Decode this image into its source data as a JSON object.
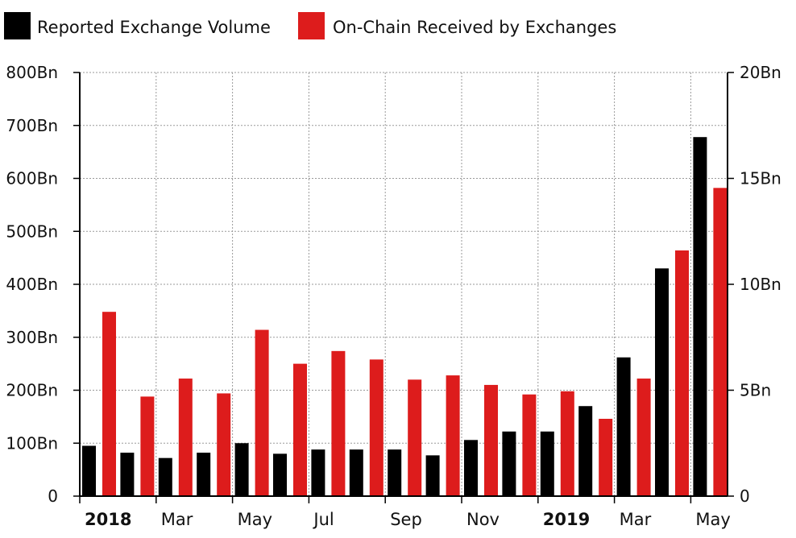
{
  "chart_data": {
    "type": "bar",
    "title": "",
    "xlabel": "",
    "ylabel": "",
    "legend": {
      "placement": "top-left",
      "entries": [
        {
          "label": "Reported Exchange Volume",
          "color": "#000000"
        },
        {
          "label": "On-Chain Received by Exchanges",
          "color": "#dd1c1c"
        }
      ]
    },
    "grid": true,
    "x_axis": {
      "ticks": [
        {
          "label": "2018",
          "bold": true
        },
        {
          "label": "Mar",
          "bold": false
        },
        {
          "label": "May",
          "bold": false
        },
        {
          "label": "Jul",
          "bold": false
        },
        {
          "label": "Sep",
          "bold": false
        },
        {
          "label": "Nov",
          "bold": false
        },
        {
          "label": "2019",
          "bold": true
        },
        {
          "label": "Mar",
          "bold": false
        },
        {
          "label": "May",
          "bold": false
        }
      ]
    },
    "y_axis_left": {
      "ylim": [
        0,
        800
      ],
      "unit": "Bn",
      "ticks": [
        "0",
        "100Bn",
        "200Bn",
        "300Bn",
        "400Bn",
        "500Bn",
        "600Bn",
        "700Bn",
        "800Bn"
      ]
    },
    "y_axis_right": {
      "ylim": [
        0,
        20
      ],
      "unit": "Bn",
      "ticks": [
        "0",
        "5Bn",
        "10Bn",
        "15Bn",
        "20Bn"
      ]
    },
    "months": [
      "2018-01",
      "2018-02",
      "2018-03",
      "2018-04",
      "2018-05",
      "2018-06",
      "2018-07",
      "2018-08",
      "2018-09",
      "2018-10",
      "2018-11",
      "2018-12",
      "2019-01",
      "2019-02",
      "2019-03",
      "2019-04",
      "2019-05"
    ],
    "series": [
      {
        "name": "Reported Exchange Volume",
        "axis": "left",
        "color": "#000000",
        "values": [
          95,
          82,
          72,
          82,
          100,
          80,
          88,
          88,
          88,
          77,
          106,
          122,
          122,
          170,
          262,
          430,
          678
        ]
      },
      {
        "name": "On-Chain Received by Exchanges",
        "axis": "right",
        "color": "#dd1c1c",
        "values": [
          8.7,
          4.7,
          5.55,
          4.85,
          7.85,
          6.25,
          6.85,
          6.45,
          5.5,
          5.7,
          5.25,
          4.8,
          4.95,
          3.65,
          5.55,
          11.6,
          14.55
        ]
      }
    ]
  }
}
